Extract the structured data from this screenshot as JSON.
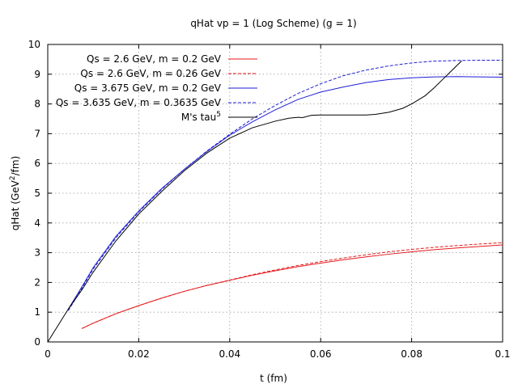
{
  "chart_data": {
    "type": "line",
    "title": "qHat vp = 1 (Log Scheme) (g = 1)",
    "xlabel": "t (fm)",
    "ylabel": "qHat (GeV²/fm)",
    "ylabel_parts": {
      "pre": "qHat (GeV",
      "sup": "2",
      "post": "/fm)"
    },
    "xlim": [
      0,
      0.1
    ],
    "ylim": [
      0,
      10
    ],
    "xticks": [
      {
        "value": 0,
        "label": "0"
      },
      {
        "value": 0.02,
        "label": "0.02"
      },
      {
        "value": 0.04,
        "label": "0.04"
      },
      {
        "value": 0.06,
        "label": "0.06"
      },
      {
        "value": 0.08,
        "label": "0.08"
      },
      {
        "value": 0.1,
        "label": "0.1"
      }
    ],
    "yticks": [
      {
        "value": 0,
        "label": "0"
      },
      {
        "value": 1,
        "label": "1"
      },
      {
        "value": 2,
        "label": "2"
      },
      {
        "value": 3,
        "label": "3"
      },
      {
        "value": 4,
        "label": "4"
      },
      {
        "value": 5,
        "label": "5"
      },
      {
        "value": 6,
        "label": "6"
      },
      {
        "value": 7,
        "label": "7"
      },
      {
        "value": 8,
        "label": "8"
      },
      {
        "value": 9,
        "label": "9"
      },
      {
        "value": 10,
        "label": "10"
      }
    ],
    "grid": true,
    "legend_position": "top-left",
    "series": [
      {
        "name": "Qs = 2.6 GeV, m = 0.2 GeV",
        "name_parts": {
          "pre": "Qs = 2.6 GeV, m = 0.2 GeV",
          "sup": ""
        },
        "color": "#e41a1c",
        "dash": "solid",
        "x": [
          0.0075,
          0.01,
          0.015,
          0.02,
          0.025,
          0.03,
          0.035,
          0.04,
          0.045,
          0.05,
          0.055,
          0.06,
          0.065,
          0.07,
          0.075,
          0.08,
          0.085,
          0.09,
          0.095,
          0.1
        ],
        "y": [
          0.45,
          0.63,
          0.95,
          1.22,
          1.47,
          1.7,
          1.9,
          2.07,
          2.24,
          2.39,
          2.53,
          2.65,
          2.76,
          2.86,
          2.95,
          3.03,
          3.1,
          3.16,
          3.21,
          3.26
        ]
      },
      {
        "name": "Qs = 2.6 GeV, m = 0.26 GeV",
        "name_parts": {
          "pre": "Qs = 2.6 GeV, m = 0.26 GeV",
          "sup": ""
        },
        "color": "#e41a1c",
        "dash": "dashed",
        "x": [
          0.0075,
          0.01,
          0.015,
          0.02,
          0.025,
          0.03,
          0.035,
          0.04,
          0.045,
          0.05,
          0.055,
          0.06,
          0.065,
          0.07,
          0.075,
          0.08,
          0.085,
          0.09,
          0.095,
          0.1
        ],
        "y": [
          0.45,
          0.63,
          0.95,
          1.22,
          1.47,
          1.7,
          1.9,
          2.08,
          2.26,
          2.42,
          2.57,
          2.7,
          2.82,
          2.93,
          3.03,
          3.11,
          3.18,
          3.24,
          3.29,
          3.34
        ]
      },
      {
        "name": "Qs = 3.675 GeV, m = 0.2 GeV",
        "name_parts": {
          "pre": "Qs = 3.675 GeV, m = 0.2 GeV",
          "sup": ""
        },
        "color": "#1f1fd6",
        "dash": "solid",
        "x": [
          0.0045,
          0.0075,
          0.01,
          0.015,
          0.02,
          0.025,
          0.03,
          0.035,
          0.04,
          0.045,
          0.05,
          0.055,
          0.06,
          0.065,
          0.07,
          0.075,
          0.08,
          0.085,
          0.09,
          0.095,
          0.1
        ],
        "y": [
          1.1,
          1.85,
          2.5,
          3.55,
          4.4,
          5.15,
          5.8,
          6.4,
          6.95,
          7.4,
          7.8,
          8.15,
          8.4,
          8.57,
          8.72,
          8.82,
          8.88,
          8.91,
          8.92,
          8.91,
          8.9
        ]
      },
      {
        "name": "Qs = 3.635 GeV, m = 0.3635 GeV",
        "name_parts": {
          "pre": "Qs = 3.635 GeV, m = 0.3635 GeV",
          "sup": ""
        },
        "color": "#1f1fd6",
        "dash": "dashed",
        "x": [
          0.0045,
          0.0075,
          0.01,
          0.015,
          0.02,
          0.025,
          0.03,
          0.035,
          0.04,
          0.045,
          0.05,
          0.055,
          0.06,
          0.065,
          0.07,
          0.075,
          0.08,
          0.085,
          0.09,
          0.095,
          0.1
        ],
        "y": [
          1.05,
          1.8,
          2.45,
          3.5,
          4.37,
          5.12,
          5.8,
          6.42,
          6.98,
          7.5,
          7.95,
          8.35,
          8.68,
          8.95,
          9.14,
          9.28,
          9.38,
          9.44,
          9.46,
          9.47,
          9.47
        ]
      },
      {
        "name": "M's tau^5",
        "name_parts": {
          "pre": "M's tau",
          "sup": "5"
        },
        "color": "#000000",
        "dash": "solid",
        "x": [
          0,
          0.0045,
          0.0075,
          0.01,
          0.015,
          0.02,
          0.025,
          0.03,
          0.035,
          0.04,
          0.045,
          0.05,
          0.053,
          0.055,
          0.056,
          0.058,
          0.06,
          0.065,
          0.07,
          0.072,
          0.075,
          0.078,
          0.08,
          0.083,
          0.085,
          0.087,
          0.089,
          0.091
        ],
        "y": [
          0,
          1.1,
          1.75,
          2.35,
          3.4,
          4.3,
          5.05,
          5.75,
          6.35,
          6.85,
          7.2,
          7.42,
          7.52,
          7.55,
          7.54,
          7.62,
          7.63,
          7.63,
          7.63,
          7.65,
          7.72,
          7.85,
          8.0,
          8.28,
          8.55,
          8.85,
          9.15,
          9.45
        ]
      }
    ]
  }
}
